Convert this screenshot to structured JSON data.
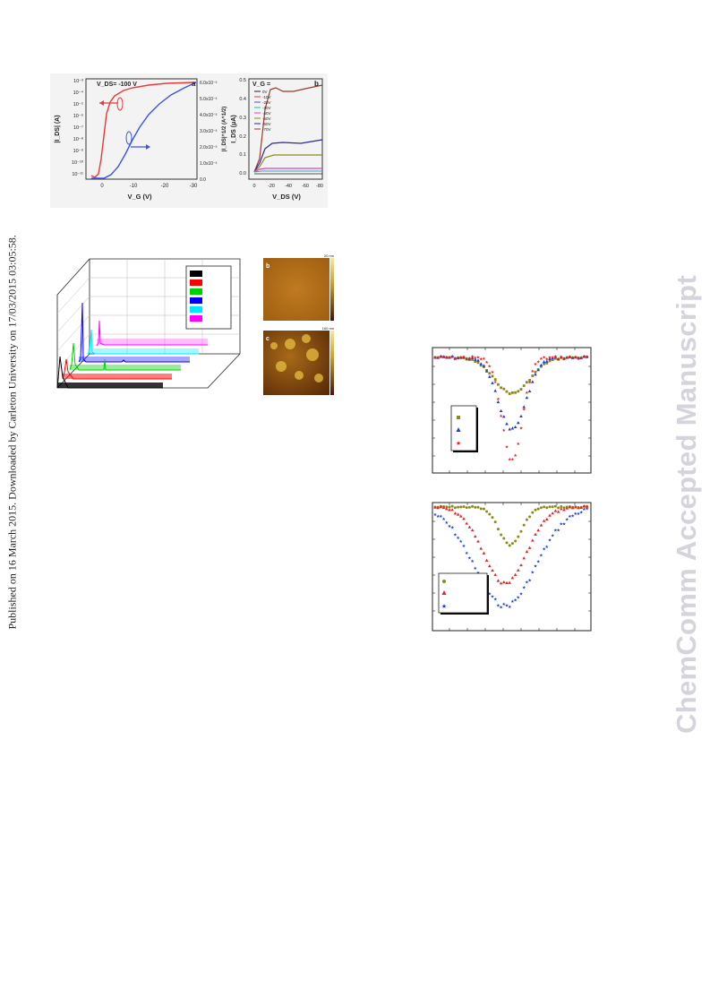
{
  "side_note": "Published on 16 March 2015. Downloaded by Carleton University on 17/03/2015 03:05:58.",
  "watermark": "ChemComm Accepted Manuscript",
  "figure_a": {
    "panel_label": "a",
    "annotation": "V_DS= -100 V",
    "xlabel": "V_G (V)",
    "ylabel_left": "|I_DS| (A)",
    "ylabel_right": "|I_DS|^1/2 (A^1/2)",
    "x_ticks": [
      "0",
      "-10",
      "-20",
      "-30"
    ],
    "y_left_ticks": [
      "10⁻³",
      "10⁻⁴",
      "10⁻⁵",
      "10⁻⁶",
      "10⁻⁷",
      "10⁻⁸",
      "10⁻⁹",
      "10⁻¹⁰",
      "10⁻¹¹"
    ],
    "y_right_ticks": [
      "6.0x10⁻³",
      "5.0x10⁻³",
      "4.0x10⁻³",
      "3.0x10⁻³",
      "2.0x10⁻³",
      "1.0x10⁻³",
      "0.0"
    ],
    "colors": {
      "transfer": "#e8383d",
      "sqrt": "#3a56e0"
    }
  },
  "figure_b": {
    "panel_label": "b",
    "annotation": "V_G =",
    "xlabel": "V_DS (V)",
    "ylabel": "I_DS (μA)",
    "x_ticks": [
      "0",
      "-20",
      "-40",
      "-60",
      "-80"
    ],
    "y_ticks": [
      "0.5",
      "0.4",
      "0.3",
      "0.2",
      "0.1",
      "0.0"
    ],
    "legend": [
      {
        "label": "0V",
        "color": "#222222"
      },
      {
        "label": "-10V",
        "color": "#e8383d"
      },
      {
        "label": "-20V",
        "color": "#3a56e0"
      },
      {
        "label": "-30V",
        "color": "#20b0b8"
      },
      {
        "label": "-40V",
        "color": "#e040c8"
      },
      {
        "label": "-50V",
        "color": "#8a8a1a"
      },
      {
        "label": "-60V",
        "color": "#2a2a9a"
      },
      {
        "label": "-70V",
        "color": "#9a3a2a"
      }
    ]
  },
  "xrd": {
    "series_colors": [
      "#000000",
      "#ff0000",
      "#00d000",
      "#0000ff",
      "#00e8ff",
      "#ff00ff"
    ]
  },
  "afm": {
    "b": {
      "panel_label": "b",
      "scale_max": "20 nm"
    },
    "c": {
      "panel_label": "c",
      "scale_max": "160 nm"
    }
  },
  "plot1": {
    "legend_colors": [
      "#8a8a1a",
      "#1a3ae0",
      "#e82020"
    ],
    "legend_markers": [
      "square",
      "triangle",
      "star"
    ]
  },
  "plot2": {
    "legend_colors": [
      "#8a8a1a",
      "#e82020",
      "#1a3ae0"
    ],
    "legend_markers": [
      "circle",
      "triangle",
      "star"
    ]
  }
}
